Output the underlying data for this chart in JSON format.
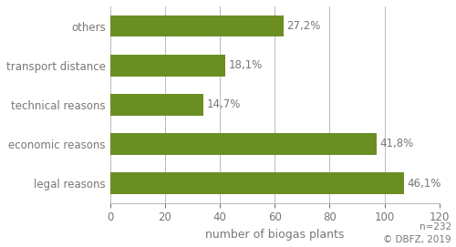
{
  "categories": [
    "legal reasons",
    "economic reasons",
    "technical reasons",
    "transport distance",
    "others"
  ],
  "values": [
    107.0,
    97.0,
    34.1,
    42.0,
    63.1
  ],
  "bar_color": "#6b8e23",
  "labels": [
    "46,1%",
    "41,8%",
    "14,7%",
    "18,1%",
    "27,2%"
  ],
  "xlabel": "number of biogas plants",
  "xlim": [
    0,
    120
  ],
  "xticks": [
    0,
    20,
    40,
    60,
    80,
    100,
    120
  ],
  "footnote": "n=232\n© DBFZ, 2019",
  "bar_height": 0.55,
  "label_color": "#777777",
  "axis_color": "#bbbbbb",
  "background_color": "#ffffff",
  "label_fontsize": 8.5,
  "tick_fontsize": 8.5,
  "xlabel_fontsize": 9.0,
  "footnote_fontsize": 7.5
}
